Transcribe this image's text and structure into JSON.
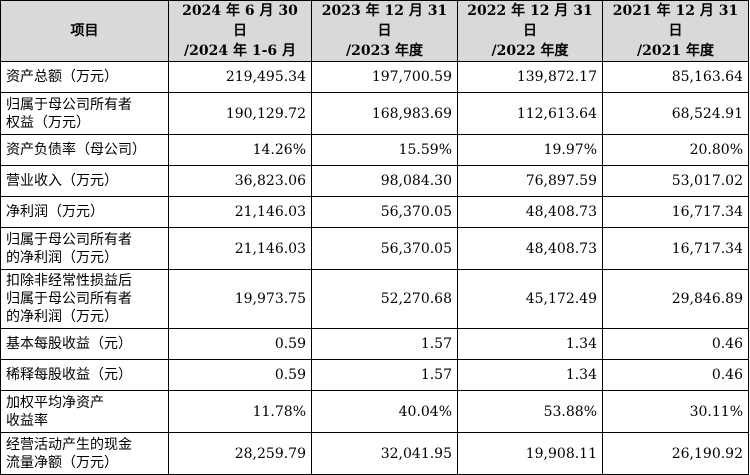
{
  "header": {
    "item": "项目",
    "periods": [
      {
        "line1": "2024 年 6 月 30 日",
        "line2": "/2024 年 1-6 月"
      },
      {
        "line1": "2023 年 12 月 31 日",
        "line2": "/2023 年度"
      },
      {
        "line1": "2022 年 12 月 31 日",
        "line2": "/2022 年度"
      },
      {
        "line1": "2021 年 12 月 31 日",
        "line2": "/2021 年度"
      }
    ]
  },
  "rows": [
    {
      "label": [
        "资产总额（万元）"
      ],
      "values": [
        "219,495.34",
        "197,700.59",
        "139,872.17",
        "85,163.64"
      ]
    },
    {
      "label": [
        "归属于母公司所有者",
        "权益（万元）"
      ],
      "values": [
        "190,129.72",
        "168,983.69",
        "112,613.64",
        "68,524.91"
      ]
    },
    {
      "label": [
        "资产负债率（母公司）"
      ],
      "values": [
        "14.26%",
        "15.59%",
        "19.97%",
        "20.80%"
      ]
    },
    {
      "label": [
        "营业收入（万元）"
      ],
      "values": [
        "36,823.06",
        "98,084.30",
        "76,897.59",
        "53,017.02"
      ]
    },
    {
      "label": [
        "净利润（万元）"
      ],
      "values": [
        "21,146.03",
        "56,370.05",
        "48,408.73",
        "16,717.34"
      ]
    },
    {
      "label": [
        "归属于母公司所有者",
        "的净利润（万元）"
      ],
      "values": [
        "21,146.03",
        "56,370.05",
        "48,408.73",
        "16,717.34"
      ]
    },
    {
      "label": [
        "扣除非经常性损益后",
        "归属于母公司所有者",
        "的净利润（万元）"
      ],
      "values": [
        "19,973.75",
        "52,270.68",
        "45,172.49",
        "29,846.89"
      ]
    },
    {
      "label": [
        "基本每股收益（元）"
      ],
      "values": [
        "0.59",
        "1.57",
        "1.34",
        "0.46"
      ]
    },
    {
      "label": [
        "稀释每股收益（元）"
      ],
      "values": [
        "0.59",
        "1.57",
        "1.34",
        "0.46"
      ]
    },
    {
      "label": [
        "加权平均净资产",
        "收益率"
      ],
      "values": [
        "11.78%",
        "40.04%",
        "53.88%",
        "30.11%"
      ]
    },
    {
      "label": [
        "经营活动产生的现金",
        "流量净额（万元）"
      ],
      "values": [
        "28,259.79",
        "32,041.95",
        "19,908.11",
        "26,190.92"
      ]
    }
  ]
}
